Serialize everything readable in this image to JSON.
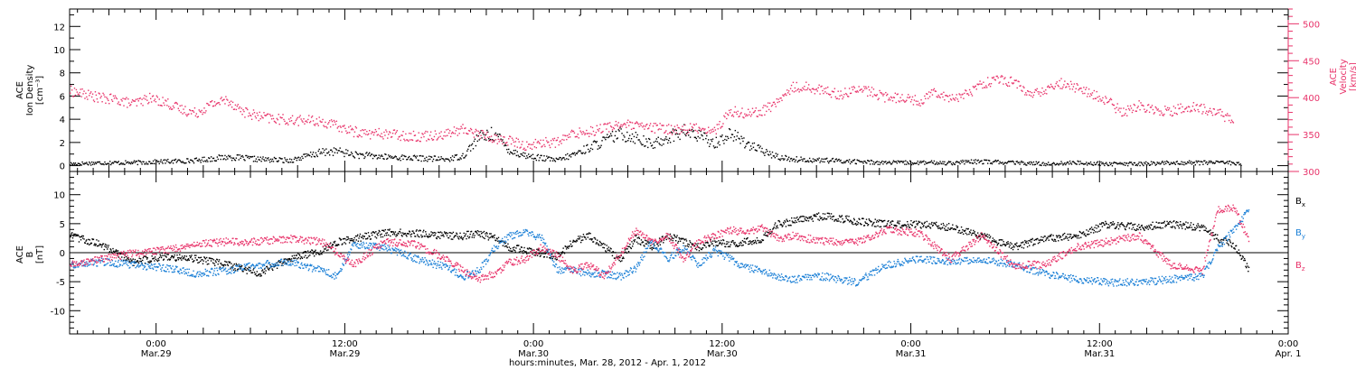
{
  "figure": {
    "x_axis_caption": "hours:minutes, Mar. 28, 2012 - Apr. 1, 2012",
    "x_ticks": [
      {
        "hours": 5.5,
        "time": "0:00",
        "date": "Mar.29"
      },
      {
        "hours": 17.5,
        "time": "12:00",
        "date": "Mar.29"
      },
      {
        "hours": 29.5,
        "time": "0:00",
        "date": "Mar.30"
      },
      {
        "hours": 41.5,
        "time": "12:00",
        "date": "Mar.30"
      },
      {
        "hours": 53.5,
        "time": "0:00",
        "date": "Mar.31"
      },
      {
        "hours": 65.5,
        "time": "12:00",
        "date": "Mar.31"
      },
      {
        "hours": 77.5,
        "time": "0:00",
        "date": "Apr. 1"
      }
    ]
  },
  "colors": {
    "axis": "#000000",
    "pink": "#e8336a",
    "blue": "#1a7fd6",
    "black": "#000000"
  },
  "chart_data": [
    {
      "type": "scatter",
      "panel": "top",
      "x_unit": "hours since start of plot (0:00 Mar.29 = 5.5)",
      "xlim": [
        0,
        77.5
      ],
      "left_axis": {
        "label_lines": [
          "ACE",
          "Ion Density",
          "[cm⁻³]"
        ],
        "ylim": [
          -0.5,
          13.5
        ],
        "ticks": [
          0,
          2,
          4,
          6,
          8,
          10,
          12
        ]
      },
      "right_axis": {
        "label_lines": [
          "ACE",
          "Velocity",
          "[km/s]"
        ],
        "ylim": [
          300,
          520
        ],
        "ticks": [
          300,
          350,
          400,
          450,
          500
        ],
        "color": "#e8336a"
      },
      "series": [
        {
          "name": "Ion Density",
          "axis": "left",
          "color": "#000000",
          "x": [
            0,
            2,
            4,
            6,
            8,
            10,
            12,
            14,
            16,
            17,
            18,
            20,
            22,
            24,
            25,
            26,
            27,
            28,
            29,
            30,
            31,
            32,
            33,
            34,
            35,
            36,
            37,
            38,
            39,
            40,
            41,
            42,
            43,
            44,
            45,
            46,
            48,
            50,
            52,
            54,
            56,
            58,
            60,
            62,
            64,
            66,
            68,
            70,
            72,
            73,
            74.5
          ],
          "y": [
            0.2,
            0.3,
            0.3,
            0.4,
            0.5,
            0.8,
            0.6,
            0.5,
            1.2,
            1.3,
            1.0,
            0.8,
            0.7,
            0.6,
            0.9,
            2.5,
            2.8,
            1.3,
            0.9,
            0.7,
            0.5,
            1.0,
            1.6,
            2.2,
            2.8,
            2.5,
            1.8,
            2.5,
            3.0,
            2.6,
            2.0,
            2.8,
            2.0,
            1.3,
            0.8,
            0.6,
            0.5,
            0.4,
            0.3,
            0.3,
            0.3,
            0.4,
            0.3,
            0.2,
            0.3,
            0.2,
            0.2,
            0.3,
            0.3,
            0.4,
            0.2
          ]
        },
        {
          "name": "Velocity",
          "axis": "right",
          "color": "#e8336a",
          "x": [
            0,
            1,
            2,
            3,
            4,
            5,
            6,
            7,
            8,
            9,
            10,
            11,
            12,
            13,
            14,
            15,
            16,
            17,
            18,
            19,
            20,
            21,
            22,
            23,
            24,
            25,
            26,
            27,
            28,
            29,
            30,
            31,
            32,
            33,
            34,
            35,
            36,
            37,
            38,
            39,
            40,
            41,
            42,
            43,
            44,
            45,
            46,
            47,
            48,
            49,
            50,
            51,
            52,
            53,
            54,
            55,
            56,
            57,
            58,
            59,
            60,
            61,
            62,
            63,
            64,
            65,
            66,
            67,
            68,
            69,
            70,
            71,
            72,
            73,
            74
          ],
          "y": [
            410,
            405,
            400,
            398,
            392,
            400,
            395,
            385,
            380,
            392,
            398,
            382,
            375,
            372,
            370,
            370,
            368,
            362,
            355,
            352,
            352,
            350,
            348,
            350,
            352,
            358,
            352,
            345,
            342,
            335,
            340,
            340,
            352,
            355,
            360,
            365,
            362,
            360,
            358,
            358,
            360,
            355,
            382,
            380,
            382,
            395,
            415,
            415,
            410,
            405,
            412,
            408,
            400,
            402,
            395,
            410,
            400,
            405,
            420,
            425,
            422,
            405,
            410,
            420,
            415,
            405,
            395,
            380,
            390,
            385,
            382,
            388,
            386,
            380,
            370
          ]
        }
      ]
    },
    {
      "type": "scatter",
      "panel": "bottom",
      "x_unit": "hours since start of plot (0:00 Mar.29 = 5.5)",
      "xlim": [
        0,
        77.5
      ],
      "left_axis": {
        "label_lines": [
          "ACE",
          "B",
          "[nT]"
        ],
        "ylim": [
          -14,
          14
        ],
        "ticks": [
          -10,
          -5,
          0,
          5,
          10
        ]
      },
      "zero_line": 0,
      "legend_placement": "right",
      "series": [
        {
          "name": "Bx",
          "legend_label": "B",
          "legend_sub": "x",
          "color": "#000000",
          "x": [
            0,
            2,
            4,
            6,
            8,
            10,
            12,
            14,
            16,
            17,
            18,
            20,
            22,
            24,
            25,
            26,
            27,
            28,
            29,
            30,
            31,
            32,
            33,
            34,
            35,
            36,
            37,
            38,
            39,
            40,
            41,
            42,
            43,
            44,
            45,
            46,
            48,
            50,
            52,
            54,
            56,
            58,
            60,
            62,
            64,
            66,
            68,
            70,
            72,
            73,
            74,
            75
          ],
          "y": [
            3,
            1.5,
            -1.5,
            -0.5,
            -1,
            -2,
            -3.5,
            -1,
            0.5,
            2,
            2.5,
            3.5,
            3.5,
            3,
            3,
            3.5,
            2.5,
            1,
            0.5,
            0,
            -0.5,
            2,
            3,
            1,
            -1,
            2.5,
            1,
            3,
            2,
            1,
            2,
            1.5,
            2,
            2.5,
            5,
            5.5,
            6.5,
            5.5,
            5,
            5,
            4.5,
            3,
            1,
            2.5,
            3,
            5,
            4.5,
            5,
            4.5,
            2.5,
            1.5,
            -3
          ]
        },
        {
          "name": "By",
          "legend_label": "B",
          "legend_sub": "y",
          "color": "#1a7fd6",
          "x": [
            0,
            2,
            4,
            6,
            8,
            10,
            12,
            14,
            16,
            17,
            18,
            20,
            22,
            24,
            25,
            26,
            27,
            28,
            29,
            30,
            31,
            32,
            33,
            34,
            35,
            36,
            37,
            38,
            39,
            40,
            41,
            42,
            43,
            44,
            45,
            46,
            48,
            50,
            52,
            54,
            56,
            58,
            60,
            62,
            64,
            66,
            68,
            70,
            72,
            73,
            74,
            75
          ],
          "y": [
            -2,
            -1.5,
            -2,
            -2.5,
            -3.5,
            -3,
            -2,
            -1.5,
            -3,
            -4,
            1.5,
            1,
            -1,
            -2.5,
            -4,
            -3,
            1,
            3,
            3.5,
            2.5,
            -3,
            -3,
            -3.5,
            -3.5,
            -4,
            -2.5,
            2,
            -1,
            1,
            -2,
            0.5,
            -1,
            -2.5,
            -3,
            -4,
            -4.5,
            -4,
            -5,
            -2,
            -1,
            -1.5,
            -1,
            -2,
            -3.5,
            -4.5,
            -5,
            -5,
            -4.5,
            -4,
            1,
            4,
            7.5
          ]
        },
        {
          "name": "Bz",
          "legend_label": "B",
          "legend_sub": "z",
          "color": "#e8336a",
          "x": [
            0,
            2,
            4,
            6,
            8,
            10,
            12,
            14,
            16,
            17,
            18,
            20,
            22,
            24,
            25,
            26,
            27,
            28,
            29,
            30,
            31,
            32,
            33,
            34,
            35,
            36,
            37,
            38,
            39,
            40,
            41,
            42,
            43,
            44,
            45,
            46,
            48,
            50,
            52,
            54,
            56,
            58,
            60,
            62,
            64,
            66,
            68,
            70,
            72,
            73,
            74,
            75
          ],
          "y": [
            -2,
            -1,
            0,
            0.5,
            1.5,
            2,
            2,
            2.5,
            2,
            0,
            -2,
            2,
            1.5,
            -1,
            -3,
            -4.5,
            -3.5,
            -1.5,
            -1,
            1,
            -0.5,
            -3,
            -2,
            -4,
            0,
            4,
            2,
            3,
            -1,
            2,
            3,
            4,
            3.5,
            4.5,
            2.5,
            3,
            2,
            2,
            4,
            3.5,
            -1,
            3,
            -2,
            -2,
            1,
            2,
            3,
            -2,
            -3,
            7.5,
            8,
            2
          ]
        }
      ]
    }
  ]
}
